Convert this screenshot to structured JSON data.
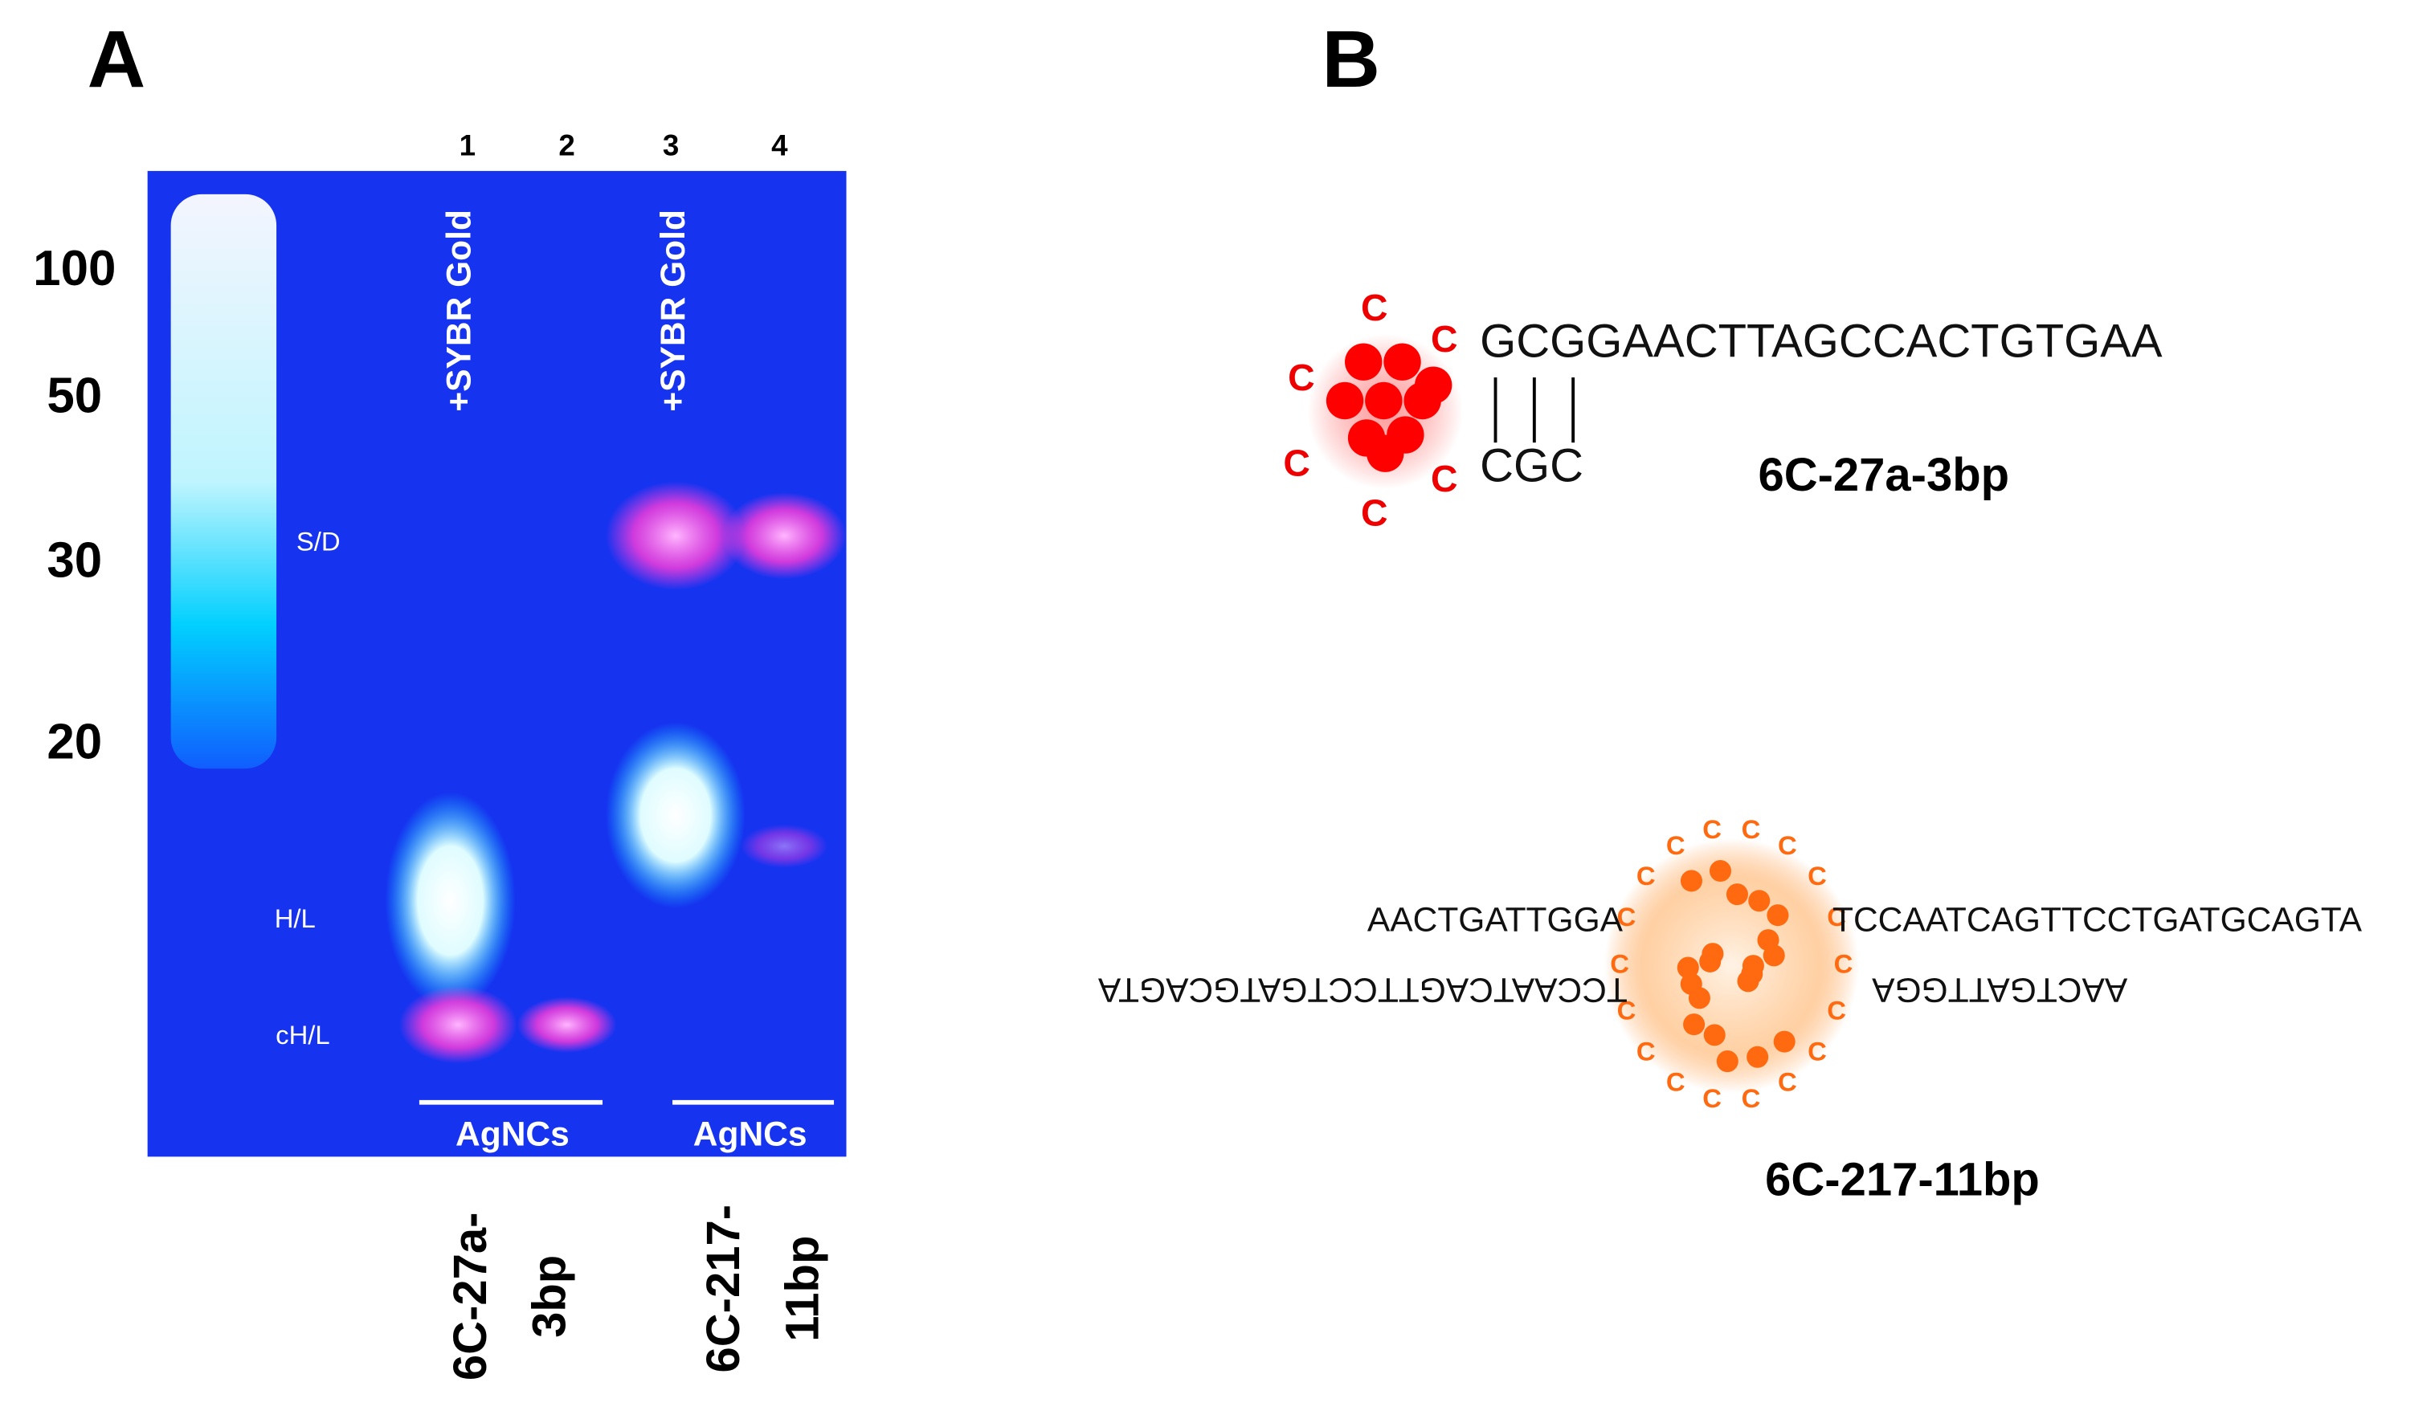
{
  "panel_a": {
    "label": "A",
    "lane_numbers": [
      "1",
      "2",
      "3",
      "4"
    ],
    "ladder_labels": [
      "100",
      "50",
      "30",
      "20"
    ],
    "stain_labels": [
      "+SYBR Gold",
      "+SYBR Gold"
    ],
    "band_labels": [
      "S/D",
      "H/L",
      "cH/L"
    ],
    "agncs_labels": [
      "AgNCs",
      "AgNCs"
    ],
    "sample_labels": [
      [
        "6C-27a-",
        "3bp"
      ],
      [
        "6C-217-",
        "11bp"
      ]
    ]
  },
  "panel_b": {
    "label": "B",
    "construct_1": {
      "cytosines": [
        "C",
        "C",
        "C",
        "C",
        "C",
        "C"
      ],
      "top_strand": "GCGGAACTTAGCCACTGTGAA",
      "bottom_strand": "CGC",
      "name": "6C-27a-3bp"
    },
    "construct_2": {
      "cytosines": [
        "C",
        "C",
        "C",
        "C",
        "C",
        "C",
        "C",
        "C",
        "C",
        "C",
        "C",
        "C",
        "C",
        "C",
        "C",
        "C",
        "C",
        "C"
      ],
      "top_left": "AACTGATTGGA",
      "top_right": "TCCAATCAGTTCCTGATGCAGTA",
      "bottom_left": "TCCAATCAGTTCCTGATGCAGTA",
      "bottom_right": "AACTGATTGGA",
      "name": "6C-217-11bp"
    }
  }
}
